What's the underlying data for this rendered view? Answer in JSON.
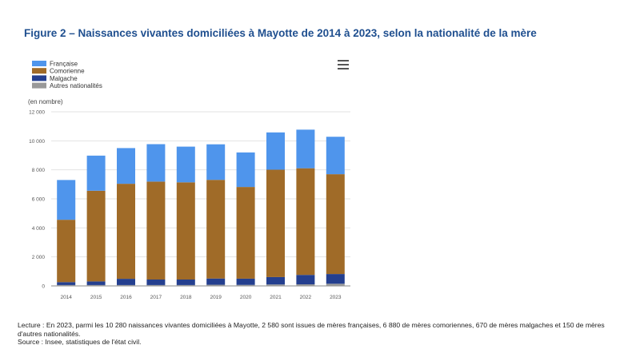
{
  "figure": {
    "title": "Figure 2 – Naissances vivantes domiciliées à Mayotte de 2014 à 2023, selon la nationalité de la mère"
  },
  "menu": {
    "icon": "hamburger-menu-icon"
  },
  "chart_data": {
    "type": "bar",
    "stacked": true,
    "unit_label": "(en nombre)",
    "categories": [
      "2014",
      "2015",
      "2016",
      "2017",
      "2018",
      "2019",
      "2020",
      "2021",
      "2022",
      "2023"
    ],
    "ylim": [
      0,
      12000
    ],
    "yticks": [
      0,
      2000,
      4000,
      6000,
      8000,
      10000,
      12000
    ],
    "ytick_labels": [
      "0",
      "2 000",
      "4 000",
      "6 000",
      "8 000",
      "10 000",
      "12 000"
    ],
    "grid": true,
    "legend_position": "top-left",
    "series": [
      {
        "name": "Autres nationalités",
        "color": "#999999",
        "values": [
          60,
          60,
          60,
          60,
          60,
          80,
          70,
          100,
          110,
          150
        ]
      },
      {
        "name": "Malgache",
        "color": "#243f8f",
        "values": [
          200,
          250,
          430,
          380,
          380,
          430,
          430,
          510,
          650,
          670
        ]
      },
      {
        "name": "Comorienne",
        "color": "#a06b28",
        "values": [
          4300,
          6250,
          6550,
          6750,
          6700,
          6800,
          6320,
          7400,
          7350,
          6880
        ]
      },
      {
        "name": "Française",
        "color": "#4f95ec",
        "values": [
          2740,
          2420,
          2460,
          2580,
          2460,
          2450,
          2380,
          2570,
          2660,
          2580
        ]
      }
    ],
    "legend_order": [
      "Française",
      "Comorienne",
      "Malgache",
      "Autres nationalités"
    ]
  },
  "notes": {
    "lecture": "Lecture : En 2023, parmi les 10 280 naissances vivantes domiciliées à Mayotte, 2 580 sont issues de mères françaises, 6 880 de mères comoriennes, 670 de mères malgaches et 150 de mères d'autres nationalités.",
    "source": "Source : Insee, statistiques de l'état civil."
  }
}
